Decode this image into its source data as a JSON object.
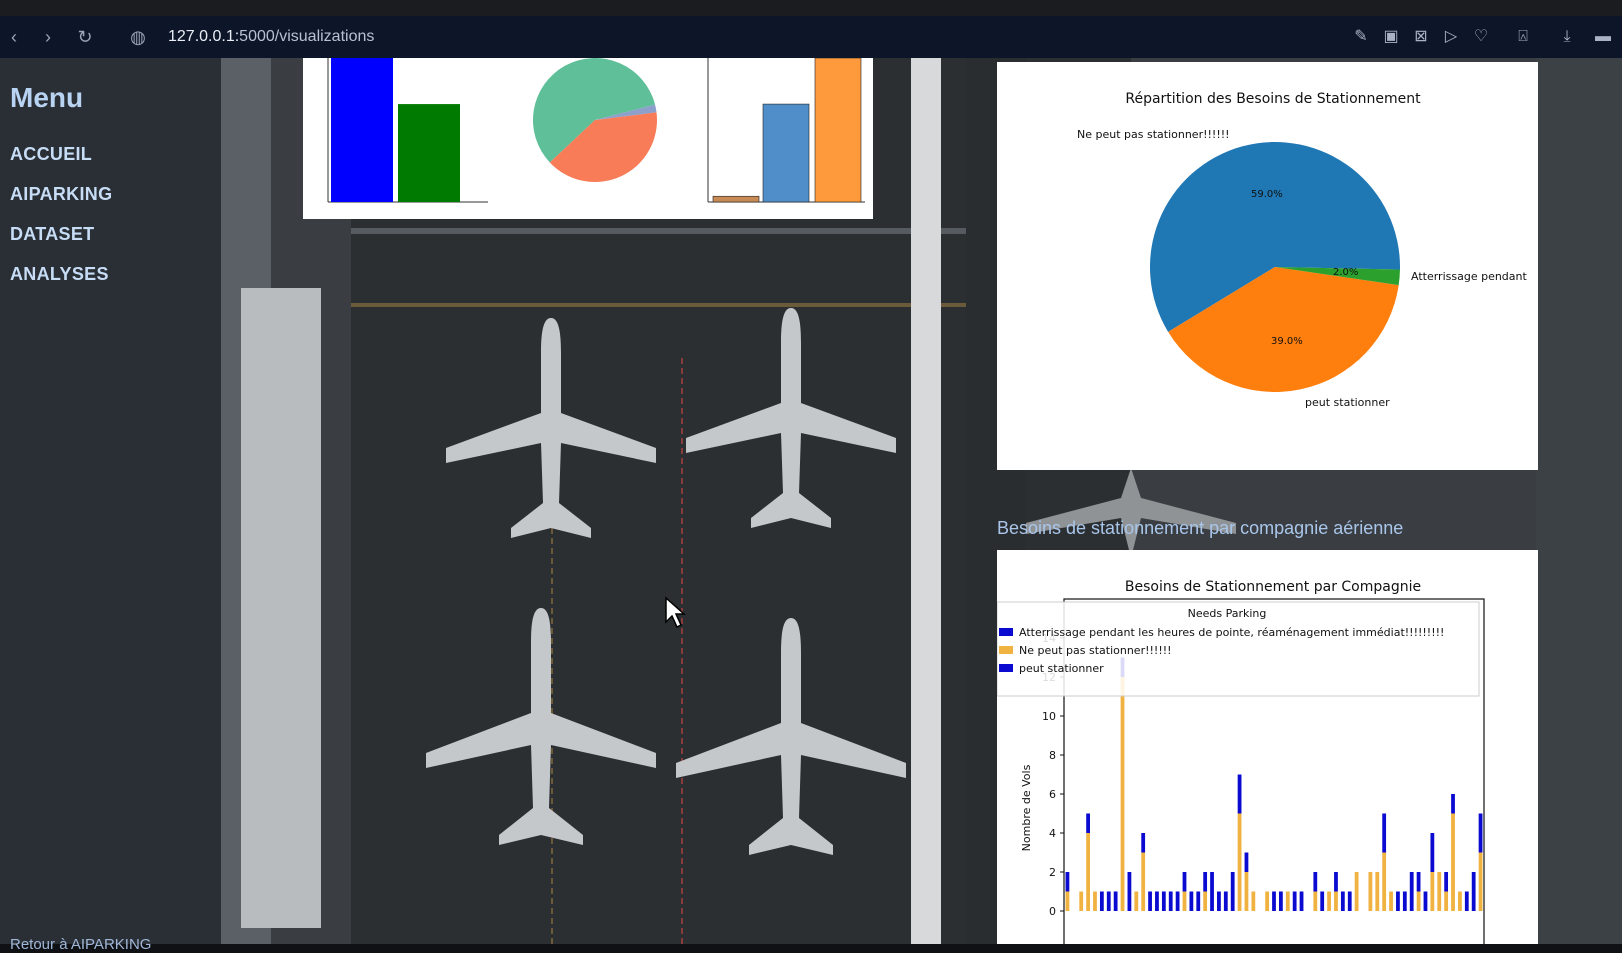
{
  "browser": {
    "url_host": "127.0.0.1:",
    "url_rest": "5000/visualizations"
  },
  "sidebar": {
    "title": "Menu",
    "items": [
      {
        "label": "ACCUEIL"
      },
      {
        "label": "AIPARKING"
      },
      {
        "label": "DATASET"
      },
      {
        "label": "ANALYSES"
      }
    ],
    "footer": "Retour à AIPARKING"
  },
  "section_title": "Besoins de stationnement par compagnie aérienne",
  "colors": {
    "blue": "#1f77b4",
    "orange": "#ff7f0e",
    "green": "#2ca02c",
    "navy": "#0a0ad0",
    "gold": "#f0b240"
  },
  "chart_data": [
    {
      "type": "bar",
      "title": "",
      "categories": [
        "",
        ""
      ],
      "values": [
        100,
        68
      ],
      "colors": [
        "#0000ff",
        "#007a00"
      ]
    },
    {
      "type": "pie",
      "title": "",
      "slices": [
        {
          "value": 58,
          "color": "#5fbf99"
        },
        {
          "value": 40,
          "color": "#f77c57"
        },
        {
          "value": 2,
          "color": "#8da0cb"
        }
      ]
    },
    {
      "type": "bar",
      "title": "",
      "categories": [
        "",
        "",
        ""
      ],
      "values": [
        4,
        68,
        100
      ],
      "colors": [
        "#c98b55",
        "#4f8ec9",
        "#ff9a3c"
      ]
    },
    {
      "type": "pie",
      "title": "Répartition des Besoins de Stationnement",
      "slices": [
        {
          "label": "Ne peut pas stationner!!!!!!",
          "value": 59.0,
          "pct_label": "59.0%",
          "color": "#1f77b4"
        },
        {
          "label": "Atterrissage pendant",
          "value": 2.0,
          "pct_label": "2.0%",
          "color": "#2ca02c"
        },
        {
          "label": "peut stationner",
          "value": 39.0,
          "pct_label": "39.0%",
          "color": "#ff7f0e"
        }
      ]
    },
    {
      "type": "bar",
      "title": "Besoins de Stationnement par Compagnie",
      "ylabel": "Nombre de Vols",
      "legend_title": "Needs Parking",
      "legend": [
        {
          "label": "Atterrissage pendant les heures de pointe, réaménagement immédiat!!!!!!!!!",
          "color": "#0a0ad0"
        },
        {
          "label": "Ne peut pas stationner!!!!!!",
          "color": "#f0b240"
        },
        {
          "label": "peut stationner",
          "color": "#0a0ad0"
        }
      ],
      "ylim": [
        0,
        16
      ],
      "yticks": [
        0,
        2,
        4,
        6,
        8,
        10,
        12,
        14
      ],
      "series": [
        {
          "name": "Ne peut pas stationner!!!!!!",
          "values": [
            1,
            0,
            1,
            4,
            1,
            0,
            0,
            0,
            12,
            0,
            1,
            3,
            0,
            0,
            0,
            0,
            0,
            1,
            0,
            0,
            1,
            0,
            0,
            0,
            0,
            5,
            2,
            1,
            0,
            1,
            0,
            0,
            1,
            0,
            0,
            0,
            1,
            0,
            1,
            1,
            0,
            0,
            2,
            0,
            2,
            2,
            3,
            1,
            0,
            0,
            0,
            1,
            0,
            2,
            2,
            1,
            5,
            1,
            0,
            0,
            3
          ]
        },
        {
          "name": "peut stationner",
          "values": [
            1,
            0,
            0,
            1,
            0,
            1,
            1,
            1,
            1,
            2,
            0,
            1,
            1,
            1,
            1,
            1,
            1,
            1,
            1,
            1,
            1,
            2,
            1,
            1,
            2,
            2,
            1,
            0,
            0,
            0,
            1,
            1,
            0,
            1,
            1,
            0,
            1,
            1,
            0,
            1,
            1,
            1,
            0,
            0,
            0,
            0,
            2,
            0,
            1,
            1,
            2,
            1,
            1,
            2,
            0,
            1,
            1,
            0,
            1,
            2,
            2
          ]
        }
      ]
    }
  ]
}
